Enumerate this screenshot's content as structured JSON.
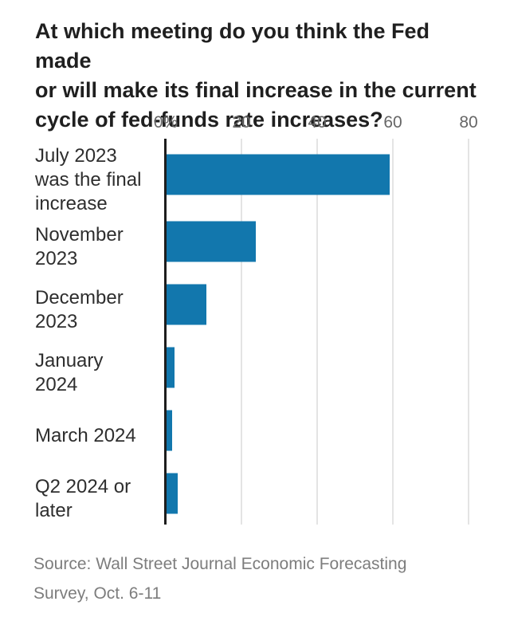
{
  "title_lines": [
    "At which meeting do you think the Fed made",
    "or will make its final increase in the current",
    "cycle of fed-funds rate increases?"
  ],
  "source_lines": [
    "Source: Wall Street Journal Economic Forecasting",
    "Survey, Oct. 6-11"
  ],
  "colors": {
    "bar": "#1277ad",
    "axis_line": "#1d1d1d",
    "gridline": "#e4e4e4",
    "tick_label": "#666666",
    "title": "#1f1f1f",
    "category_label": "#2e2e2e",
    "source": "#7d7d7d"
  },
  "chart_data": {
    "type": "bar",
    "orientation": "horizontal",
    "unit": "percent",
    "title": "At which meeting do you think the Fed made or will make its final increase in the current cycle of fed-funds rate increases?",
    "categories": [
      "July 2023 was the final increase",
      "November 2023",
      "December 2023",
      "January 2024",
      "March 2024",
      "Q2 2024 or later"
    ],
    "category_label_lines": [
      [
        "July 2023",
        "was the final",
        "increase"
      ],
      [
        "November",
        "2023"
      ],
      [
        "December",
        "2023"
      ],
      [
        "January",
        "2024"
      ],
      [
        "March 2024"
      ],
      [
        "Q2 2024 or",
        "later"
      ]
    ],
    "values": [
      59,
      23.5,
      10.5,
      2,
      1.5,
      3
    ],
    "x_ticks": [
      "0%",
      "20",
      "40",
      "60",
      "80"
    ],
    "x_tick_values": [
      0,
      20,
      40,
      60,
      80
    ],
    "xlim": [
      0,
      80
    ],
    "grid": true,
    "legend": "none",
    "source": "Source: Wall Street Journal Economic Forecasting Survey, Oct. 6-11"
  }
}
